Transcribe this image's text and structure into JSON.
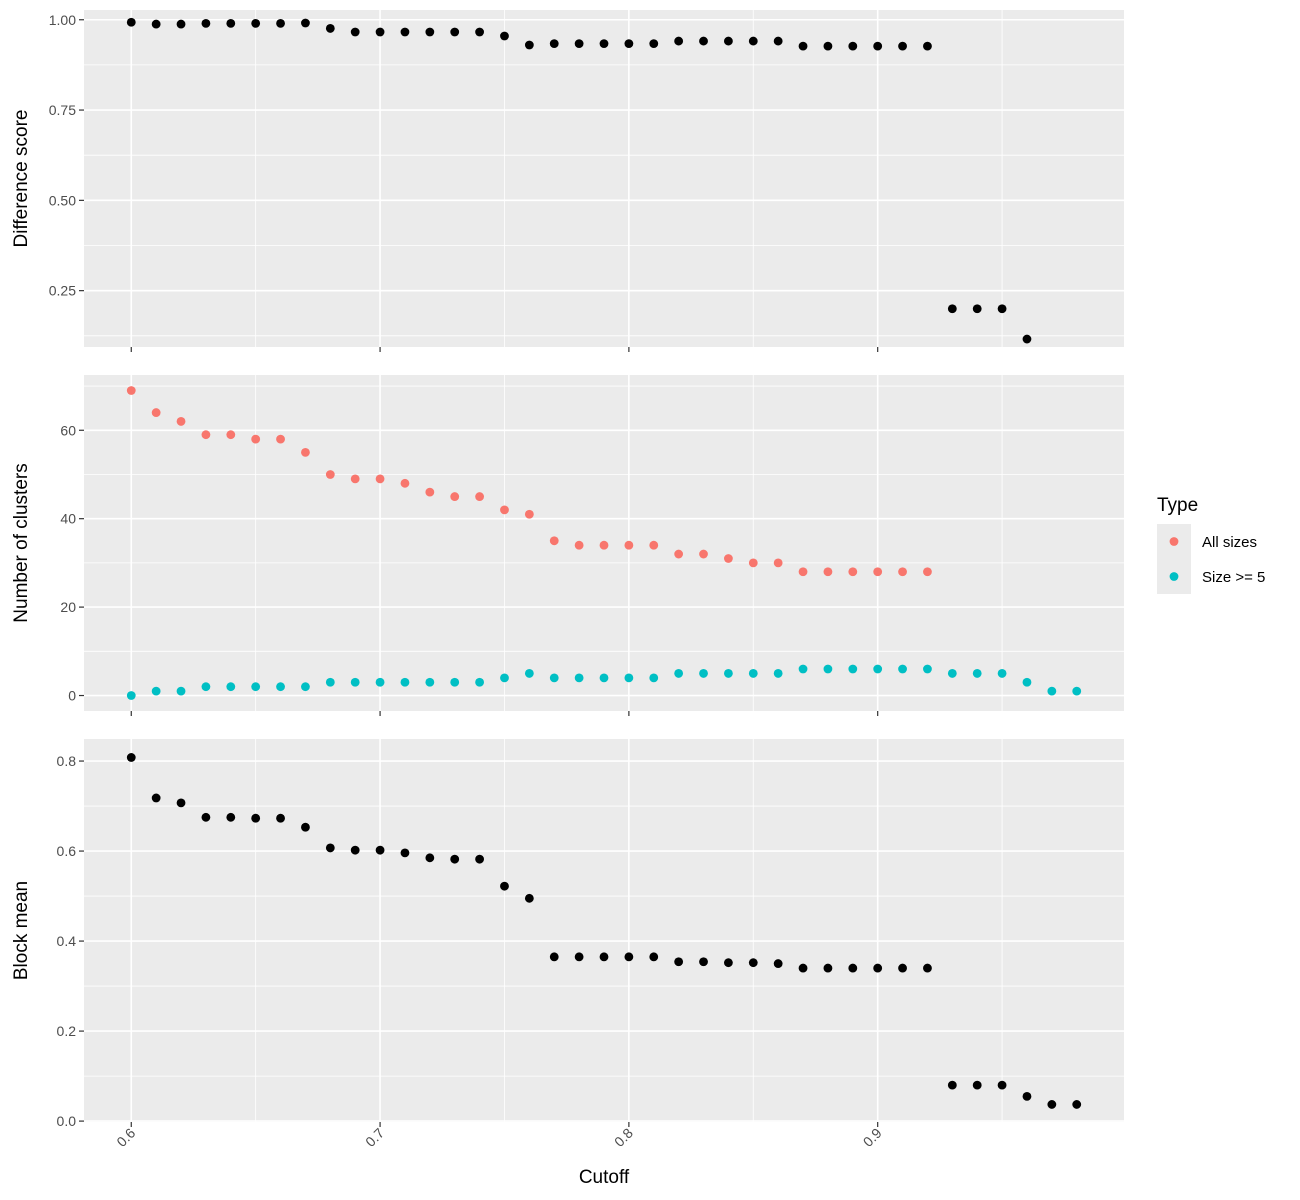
{
  "chart_data": {
    "type": "scatter",
    "xlabel": "Cutoff",
    "xlim": [
      0.581,
      0.999
    ],
    "xticks": [
      0.6,
      0.7,
      0.8,
      0.9
    ],
    "xtick_labels": [
      "0.6",
      "0.7",
      "0.8",
      "0.9"
    ],
    "panels": [
      {
        "ylabel": "Difference score",
        "ylim": [
          0.094,
          1.027
        ],
        "yticks": [
          0.25,
          0.5,
          0.75,
          1.0
        ],
        "ytick_labels": [
          "0.25",
          "0.50",
          "0.75",
          "1.00"
        ],
        "series": [
          {
            "color": "#000000",
            "points": [
              [
                0.6,
                0.993
              ],
              [
                0.61,
                0.988
              ],
              [
                0.62,
                0.988
              ],
              [
                0.63,
                0.99
              ],
              [
                0.64,
                0.99
              ],
              [
                0.65,
                0.99
              ],
              [
                0.66,
                0.99
              ],
              [
                0.67,
                0.991
              ],
              [
                0.68,
                0.976
              ],
              [
                0.69,
                0.966
              ],
              [
                0.7,
                0.966
              ],
              [
                0.71,
                0.966
              ],
              [
                0.72,
                0.966
              ],
              [
                0.73,
                0.966
              ],
              [
                0.74,
                0.966
              ],
              [
                0.75,
                0.955
              ],
              [
                0.76,
                0.93
              ],
              [
                0.77,
                0.934
              ],
              [
                0.78,
                0.934
              ],
              [
                0.79,
                0.934
              ],
              [
                0.8,
                0.934
              ],
              [
                0.81,
                0.934
              ],
              [
                0.82,
                0.941
              ],
              [
                0.83,
                0.941
              ],
              [
                0.84,
                0.941
              ],
              [
                0.85,
                0.941
              ],
              [
                0.86,
                0.941
              ],
              [
                0.87,
                0.927
              ],
              [
                0.88,
                0.927
              ],
              [
                0.89,
                0.927
              ],
              [
                0.9,
                0.927
              ],
              [
                0.91,
                0.927
              ],
              [
                0.92,
                0.927
              ],
              [
                0.93,
                0.2
              ],
              [
                0.94,
                0.2
              ],
              [
                0.95,
                0.2
              ],
              [
                0.96,
                0.116
              ]
            ]
          }
        ]
      },
      {
        "ylabel": "Number of clusters",
        "ylim": [
          -3.5,
          72.5
        ],
        "yticks": [
          0,
          20,
          40,
          60
        ],
        "ytick_labels": [
          "0",
          "20",
          "40",
          "60"
        ],
        "series": [
          {
            "name": "All sizes",
            "color": "#F8766D",
            "points": [
              [
                0.6,
                69
              ],
              [
                0.61,
                64
              ],
              [
                0.62,
                62
              ],
              [
                0.63,
                59
              ],
              [
                0.64,
                59
              ],
              [
                0.65,
                58
              ],
              [
                0.66,
                58
              ],
              [
                0.67,
                55
              ],
              [
                0.68,
                50
              ],
              [
                0.69,
                49
              ],
              [
                0.7,
                49
              ],
              [
                0.71,
                48
              ],
              [
                0.72,
                46
              ],
              [
                0.73,
                45
              ],
              [
                0.74,
                45
              ],
              [
                0.75,
                42
              ],
              [
                0.76,
                41
              ],
              [
                0.77,
                35
              ],
              [
                0.78,
                34
              ],
              [
                0.79,
                34
              ],
              [
                0.8,
                34
              ],
              [
                0.81,
                34
              ],
              [
                0.82,
                32
              ],
              [
                0.83,
                32
              ],
              [
                0.84,
                31
              ],
              [
                0.85,
                30
              ],
              [
                0.86,
                30
              ],
              [
                0.87,
                28
              ],
              [
                0.88,
                28
              ],
              [
                0.89,
                28
              ],
              [
                0.9,
                28
              ],
              [
                0.91,
                28
              ],
              [
                0.92,
                28
              ]
            ]
          },
          {
            "name": "Size >= 5",
            "color": "#00BFC4",
            "points": [
              [
                0.6,
                0
              ],
              [
                0.61,
                1
              ],
              [
                0.62,
                1
              ],
              [
                0.63,
                2
              ],
              [
                0.64,
                2
              ],
              [
                0.65,
                2
              ],
              [
                0.66,
                2
              ],
              [
                0.67,
                2
              ],
              [
                0.68,
                3
              ],
              [
                0.69,
                3
              ],
              [
                0.7,
                3
              ],
              [
                0.71,
                3
              ],
              [
                0.72,
                3
              ],
              [
                0.73,
                3
              ],
              [
                0.74,
                3
              ],
              [
                0.75,
                4
              ],
              [
                0.76,
                5
              ],
              [
                0.77,
                4
              ],
              [
                0.78,
                4
              ],
              [
                0.79,
                4
              ],
              [
                0.8,
                4
              ],
              [
                0.81,
                4
              ],
              [
                0.82,
                5
              ],
              [
                0.83,
                5
              ],
              [
                0.84,
                5
              ],
              [
                0.85,
                5
              ],
              [
                0.86,
                5
              ],
              [
                0.87,
                6
              ],
              [
                0.88,
                6
              ],
              [
                0.89,
                6
              ],
              [
                0.9,
                6
              ],
              [
                0.91,
                6
              ],
              [
                0.92,
                6
              ],
              [
                0.93,
                5
              ],
              [
                0.94,
                5
              ],
              [
                0.95,
                5
              ],
              [
                0.96,
                3
              ],
              [
                0.97,
                1
              ],
              [
                0.98,
                1
              ]
            ]
          }
        ]
      },
      {
        "ylabel": "Block mean",
        "ylim": [
          -0.002,
          0.849
        ],
        "yticks": [
          0.0,
          0.2,
          0.4,
          0.6,
          0.8
        ],
        "ytick_labels": [
          "0.0",
          "0.2",
          "0.4",
          "0.6",
          "0.8"
        ],
        "series": [
          {
            "color": "#000000",
            "points": [
              [
                0.6,
                0.808
              ],
              [
                0.61,
                0.718
              ],
              [
                0.62,
                0.707
              ],
              [
                0.63,
                0.675
              ],
              [
                0.64,
                0.675
              ],
              [
                0.65,
                0.673
              ],
              [
                0.66,
                0.673
              ],
              [
                0.67,
                0.653
              ],
              [
                0.68,
                0.607
              ],
              [
                0.69,
                0.602
              ],
              [
                0.7,
                0.602
              ],
              [
                0.71,
                0.596
              ],
              [
                0.72,
                0.585
              ],
              [
                0.73,
                0.582
              ],
              [
                0.74,
                0.582
              ],
              [
                0.75,
                0.522
              ],
              [
                0.76,
                0.495
              ],
              [
                0.77,
                0.365
              ],
              [
                0.78,
                0.365
              ],
              [
                0.79,
                0.365
              ],
              [
                0.8,
                0.365
              ],
              [
                0.81,
                0.365
              ],
              [
                0.82,
                0.354
              ],
              [
                0.83,
                0.354
              ],
              [
                0.84,
                0.352
              ],
              [
                0.85,
                0.352
              ],
              [
                0.86,
                0.35
              ],
              [
                0.87,
                0.34
              ],
              [
                0.88,
                0.34
              ],
              [
                0.89,
                0.34
              ],
              [
                0.9,
                0.34
              ],
              [
                0.91,
                0.34
              ],
              [
                0.92,
                0.34
              ],
              [
                0.93,
                0.08
              ],
              [
                0.94,
                0.08
              ],
              [
                0.95,
                0.08
              ],
              [
                0.96,
                0.055
              ],
              [
                0.97,
                0.037
              ],
              [
                0.98,
                0.037
              ]
            ]
          }
        ]
      }
    ],
    "legend": {
      "title": "Type",
      "placement": "right",
      "entries": [
        {
          "label": "All sizes",
          "color": "#F8766D"
        },
        {
          "label": "Size >= 5",
          "color": "#00BFC4"
        }
      ]
    },
    "grid": true
  }
}
